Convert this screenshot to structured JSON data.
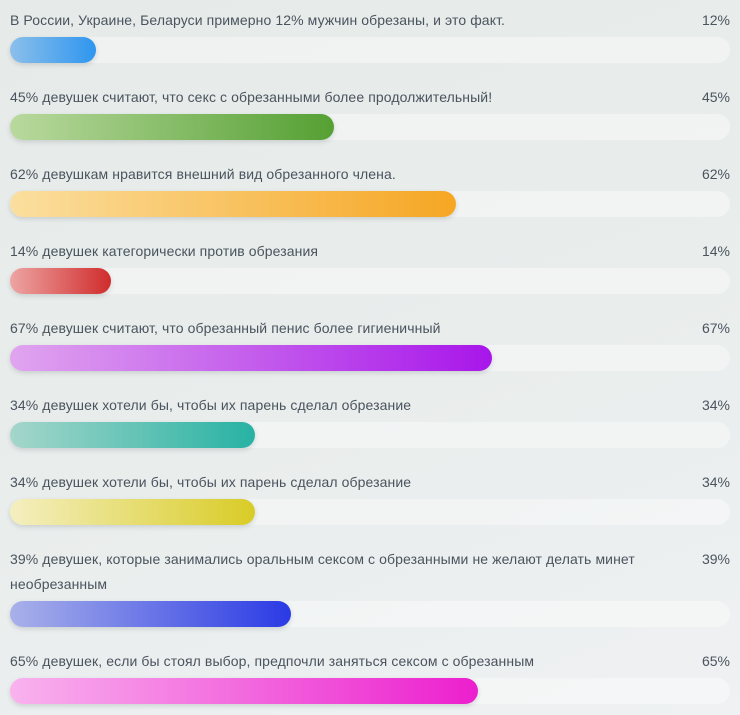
{
  "page": {
    "background_start": "#e6ebe9",
    "background_end": "#eff1f3",
    "text_color": "#4a545e",
    "track_color": "rgba(255,255,255,0.38)"
  },
  "chart_data": {
    "type": "bar",
    "orientation": "horizontal",
    "unit": "%",
    "xlim": [
      0,
      100
    ],
    "grid": false,
    "legend": false,
    "categories": [
      "В России, Украине, Беларуси примерно 12% мужчин обрезаны, и это факт.",
      "45% девушек считают, что секс с обрезанными более продолжительный!",
      "62% девушкам нравится внешний вид обрезанного члена.",
      "14% девушек категорически против обрезания",
      "67% девушек считают, что обрезанный пенис более гигиеничный",
      "34% девушек хотели бы, чтобы их парень сделал обрезание",
      "34% девушек хотели бы, чтобы их парень сделал обрезание",
      "39% девушек, которые занимались оральным сексом с обрезанными не желают делать минет необрезанным",
      "65% девушек, если бы стоял выбор, предпочли заняться сексом с обрезанным"
    ],
    "values": [
      12,
      45,
      62,
      14,
      67,
      34,
      34,
      39,
      65
    ],
    "value_labels": [
      "12%",
      "45%",
      "62%",
      "14%",
      "67%",
      "34%",
      "34%",
      "39%",
      "65%"
    ],
    "bar_gradients": [
      {
        "from": "#8cbfeb",
        "to": "#2e96ef"
      },
      {
        "from": "#b9d99e",
        "to": "#55a033"
      },
      {
        "from": "#fbdf9f",
        "to": "#f6a623"
      },
      {
        "from": "#eda5a3",
        "to": "#d02c2c"
      },
      {
        "from": "#e0a5ef",
        "to": "#a816ea"
      },
      {
        "from": "#a5d6cb",
        "to": "#27b2a3"
      },
      {
        "from": "#f4efc0",
        "to": "#d9cc27"
      },
      {
        "from": "#a9b1e9",
        "to": "#2a3ae5"
      },
      {
        "from": "#f9b3ee",
        "to": "#ec1fce"
      }
    ]
  }
}
